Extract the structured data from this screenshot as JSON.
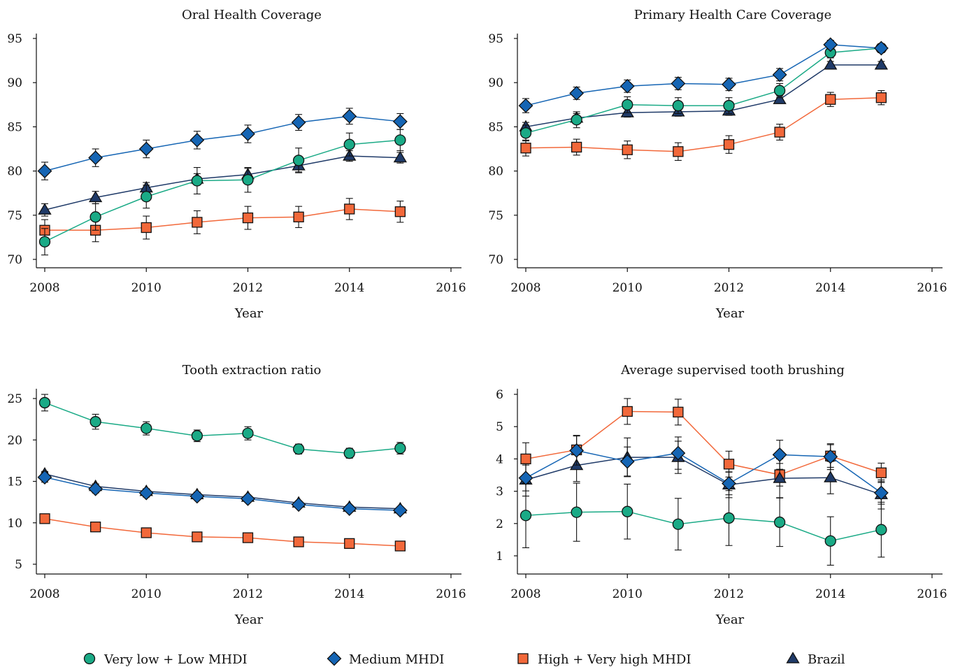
{
  "chart_data": [
    {
      "type": "line",
      "title": "Oral Health Coverage",
      "xlabel": "Year",
      "ylabel": "",
      "xlim": [
        2008,
        2016
      ],
      "ylim": [
        70,
        95
      ],
      "xticks": [
        "2008",
        "2010",
        "2012",
        "2014",
        "2016"
      ],
      "yticks": [
        "70",
        "75",
        "80",
        "85",
        "90",
        "95"
      ],
      "x": [
        2008,
        2009,
        2010,
        2011,
        2012,
        2013,
        2014,
        2015
      ],
      "series": [
        {
          "name": "Very low + Low MHDI",
          "values": [
            72.0,
            74.8,
            77.1,
            78.9,
            79.0,
            81.2,
            83.0,
            83.5
          ],
          "errors": [
            1.5,
            1.5,
            1.3,
            1.5,
            1.4,
            1.4,
            1.3,
            1.2
          ]
        },
        {
          "name": "Medium MHDI",
          "values": [
            80.0,
            81.5,
            82.5,
            83.5,
            84.2,
            85.5,
            86.2,
            85.6
          ],
          "errors": [
            1.0,
            1.0,
            1.0,
            1.0,
            1.0,
            0.9,
            0.9,
            0.9
          ]
        },
        {
          "name": "High + Very high MHDI",
          "values": [
            73.3,
            73.3,
            73.6,
            74.2,
            74.7,
            74.8,
            75.7,
            75.4
          ],
          "errors": [
            1.2,
            1.3,
            1.3,
            1.3,
            1.3,
            1.2,
            1.2,
            1.2
          ]
        },
        {
          "name": "Brazil",
          "values": [
            75.6,
            77.0,
            78.1,
            79.1,
            79.6,
            80.6,
            81.7,
            81.5
          ],
          "errors": [
            0.7,
            0.7,
            0.6,
            0.6,
            0.7,
            0.7,
            0.6,
            0.6
          ]
        }
      ]
    },
    {
      "type": "line",
      "title": "Primary Health Care Coverage",
      "xlabel": "Year",
      "ylabel": "",
      "xlim": [
        2008,
        2016
      ],
      "ylim": [
        70,
        95
      ],
      "xticks": [
        "2008",
        "2010",
        "2012",
        "2014",
        "2016"
      ],
      "yticks": [
        "70",
        "75",
        "80",
        "85",
        "90",
        "95"
      ],
      "x": [
        2008,
        2009,
        2010,
        2011,
        2012,
        2013,
        2014,
        2015
      ],
      "series": [
        {
          "name": "Very low + Low MHDI",
          "values": [
            84.3,
            85.8,
            87.5,
            87.4,
            87.4,
            89.1,
            93.4,
            93.9
          ],
          "errors": [
            0.9,
            0.9,
            0.9,
            0.9,
            0.9,
            0.8,
            0.6,
            0.5
          ]
        },
        {
          "name": "Medium MHDI",
          "values": [
            87.4,
            88.8,
            89.6,
            89.9,
            89.8,
            90.9,
            94.3,
            93.9
          ],
          "errors": [
            0.8,
            0.7,
            0.7,
            0.7,
            0.7,
            0.7,
            0.5,
            0.5
          ]
        },
        {
          "name": "High + Very high MHDI",
          "values": [
            82.6,
            82.7,
            82.4,
            82.2,
            83.0,
            84.4,
            88.1,
            88.3
          ],
          "errors": [
            0.9,
            0.9,
            1.0,
            1.0,
            1.0,
            0.9,
            0.8,
            0.8
          ]
        },
        {
          "name": "Brazil",
          "values": [
            85.0,
            86.0,
            86.6,
            86.7,
            86.8,
            88.1,
            92.0,
            92.0
          ],
          "errors": [
            0.5,
            0.5,
            0.5,
            0.5,
            0.5,
            0.4,
            0.4,
            0.4
          ]
        }
      ]
    },
    {
      "type": "line",
      "title": "Tooth extraction ratio",
      "xlabel": "Year",
      "ylabel": "",
      "xlim": [
        2008,
        2016
      ],
      "ylim": [
        3.6,
        26.2
      ],
      "xticks": [
        "2008",
        "2010",
        "2012",
        "2014",
        "2016"
      ],
      "yticks": [
        "5",
        "10",
        "15",
        "20",
        "25"
      ],
      "x": [
        2008,
        2009,
        2010,
        2011,
        2012,
        2013,
        2014,
        2015
      ],
      "series": [
        {
          "name": "Very low + Low MHDI",
          "values": [
            24.5,
            22.2,
            21.4,
            20.5,
            20.8,
            18.9,
            18.4,
            19.0
          ],
          "errors": [
            1.0,
            0.9,
            0.8,
            0.7,
            0.8,
            0.6,
            0.6,
            0.7
          ]
        },
        {
          "name": "Medium MHDI",
          "values": [
            15.5,
            14.1,
            13.6,
            13.2,
            12.9,
            12.2,
            11.7,
            11.5
          ],
          "errors": [
            0.6,
            0.5,
            0.5,
            0.4,
            0.4,
            0.4,
            0.4,
            0.4
          ]
        },
        {
          "name": "High + Very high MHDI",
          "values": [
            10.5,
            9.5,
            8.8,
            8.3,
            8.2,
            7.7,
            7.5,
            7.2
          ],
          "errors": [
            0.3,
            0.3,
            0.3,
            0.3,
            0.3,
            0.3,
            0.3,
            0.3
          ]
        },
        {
          "name": "Brazil",
          "values": [
            15.9,
            14.4,
            13.8,
            13.4,
            13.1,
            12.4,
            11.9,
            11.7
          ],
          "errors": [
            0.3,
            0.3,
            0.3,
            0.3,
            0.2,
            0.2,
            0.2,
            0.2
          ]
        }
      ]
    },
    {
      "type": "line",
      "title": "Average supervised tooth brushing",
      "xlabel": "Year",
      "ylabel": "",
      "xlim": [
        2008,
        2016
      ],
      "ylim": [
        0.4,
        6.4
      ],
      "xticks": [
        "2008",
        "2010",
        "2012",
        "2014",
        "2016"
      ],
      "yticks": [
        "1",
        "2",
        "3",
        "4",
        "5",
        "6"
      ],
      "x": [
        2008,
        2009,
        2010,
        2011,
        2012,
        2013,
        2014,
        2015
      ],
      "series": [
        {
          "name": "Very low + Low MHDI",
          "values": [
            2.25,
            2.35,
            2.37,
            1.98,
            2.17,
            2.04,
            1.46,
            1.81
          ],
          "errors": [
            1.0,
            0.9,
            0.85,
            0.8,
            0.85,
            0.75,
            0.75,
            0.85
          ]
        },
        {
          "name": "Medium MHDI",
          "values": [
            3.41,
            4.26,
            3.92,
            4.18,
            3.24,
            4.13,
            4.07,
            2.95
          ],
          "errors": [
            0.4,
            0.45,
            0.45,
            0.5,
            0.35,
            0.45,
            0.4,
            0.35
          ]
        },
        {
          "name": "High + Very high MHDI",
          "values": [
            4.0,
            4.28,
            5.47,
            5.45,
            3.84,
            3.51,
            4.09,
            3.57
          ],
          "errors": [
            0.5,
            0.45,
            0.4,
            0.4,
            0.4,
            0.35,
            0.35,
            0.3
          ]
        },
        {
          "name": "Brazil",
          "values": [
            3.35,
            3.8,
            4.05,
            4.05,
            3.2,
            3.4,
            3.42,
            2.9
          ],
          "errors": [
            0.5,
            0.5,
            0.6,
            0.5,
            0.4,
            0.6,
            0.5,
            0.45
          ]
        }
      ]
    }
  ],
  "legend": {
    "placement": "bottom",
    "items": [
      {
        "label": "Very low + Low MHDI",
        "marker": "circle"
      },
      {
        "label": "Medium MHDI",
        "marker": "diamond"
      },
      {
        "label": "High + Very high MHDI",
        "marker": "square"
      },
      {
        "label": "Brazil",
        "marker": "triangle"
      }
    ]
  },
  "colors": {
    "Very low + Low MHDI": "#1aaa86",
    "Medium MHDI": "#1565b4",
    "High + Very high MHDI": "#f2683a",
    "Brazil": "#1f3a68"
  }
}
